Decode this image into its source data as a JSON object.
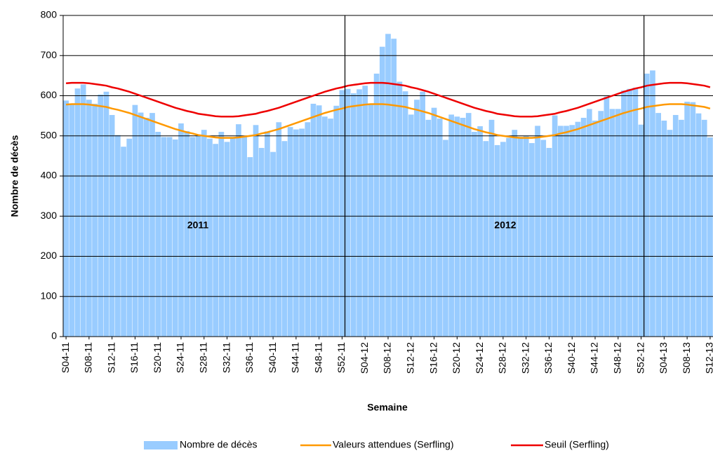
{
  "chart_data": {
    "type": "bar",
    "x_label": "Semaine",
    "y_label": "Nombre de décès",
    "annotations": [
      "2011",
      "2012"
    ],
    "categories": [
      "S04-11",
      null,
      null,
      null,
      "S08-11",
      null,
      null,
      null,
      "S12-11",
      null,
      null,
      null,
      "S16-11",
      null,
      null,
      null,
      "S20-11",
      null,
      null,
      null,
      "S24-11",
      null,
      null,
      null,
      "S28-11",
      null,
      null,
      null,
      "S32-11",
      null,
      null,
      null,
      "S36-11",
      null,
      null,
      null,
      "S40-11",
      null,
      null,
      null,
      "S44-11",
      null,
      null,
      null,
      "S48-11",
      null,
      null,
      null,
      "S52-11",
      null,
      null,
      null,
      "S04-12",
      null,
      null,
      null,
      "S08-12",
      null,
      null,
      null,
      "S12-12",
      null,
      null,
      null,
      "S16-12",
      null,
      null,
      null,
      "S20-12",
      null,
      null,
      null,
      "S24-12",
      null,
      null,
      null,
      "S28-12",
      null,
      null,
      null,
      "S32-12",
      null,
      null,
      null,
      "S36-12",
      null,
      null,
      null,
      "S40-12",
      null,
      null,
      null,
      "S44-12",
      null,
      null,
      null,
      "S48-12",
      null,
      null,
      null,
      "S52-12",
      null,
      null,
      null,
      "S04-13",
      null,
      null,
      null,
      "S08-13",
      null,
      null,
      null,
      "S12-13"
    ],
    "series": [
      {
        "name": "Nombre de décès",
        "type": "bar",
        "color": "#99ccff",
        "values": [
          588,
          580,
          618,
          628,
          590,
          580,
          603,
          610,
          552,
          502,
          473,
          493,
          577,
          558,
          545,
          557,
          510,
          497,
          497,
          491,
          531,
          512,
          497,
          501,
          515,
          493,
          480,
          510,
          485,
          495,
          529,
          498,
          447,
          527,
          470,
          511,
          460,
          534,
          487,
          522,
          516,
          518,
          534,
          580,
          576,
          548,
          543,
          575,
          614,
          617,
          606,
          616,
          625,
          580,
          655,
          722,
          754,
          742,
          635,
          611,
          553,
          590,
          610,
          540,
          570,
          543,
          490,
          553,
          548,
          545,
          557,
          510,
          524,
          487,
          540,
          477,
          485,
          495,
          515,
          497,
          500,
          482,
          525,
          490,
          470,
          551,
          525,
          525,
          527,
          535,
          545,
          567,
          538,
          562,
          598,
          567,
          567,
          613,
          617,
          620,
          528,
          655,
          663,
          557,
          538,
          515,
          552,
          540,
          585,
          584,
          556,
          540,
          496
        ]
      },
      {
        "name": "Valeurs attendues (Serfling)",
        "type": "line",
        "color": "#ff9900",
        "values": [
          578,
          579,
          579,
          579,
          578,
          576,
          574,
          572,
          568,
          565,
          561,
          557,
          552,
          547,
          542,
          537,
          532,
          527,
          522,
          517,
          513,
          509,
          506,
          502,
          500,
          498,
          496,
          495,
          495,
          495,
          496,
          498,
          500,
          502,
          506,
          509,
          513,
          517,
          522,
          527,
          532,
          537,
          542,
          547,
          552,
          557,
          561,
          565,
          568,
          572,
          574,
          576,
          578,
          579,
          579,
          579,
          578,
          576,
          574,
          572,
          568,
          565,
          561,
          557,
          552,
          547,
          542,
          537,
          532,
          527,
          522,
          517,
          513,
          509,
          506,
          502,
          500,
          498,
          496,
          495,
          495,
          495,
          496,
          498,
          500,
          502,
          506,
          509,
          513,
          517,
          522,
          527,
          532,
          537,
          542,
          547,
          552,
          557,
          561,
          565,
          568,
          572,
          574,
          576,
          578,
          579,
          579,
          579,
          578,
          576,
          574,
          572,
          568
        ]
      },
      {
        "name": "Seuil (Serfling)",
        "type": "line",
        "color": "#ee0000",
        "values": [
          631,
          632,
          632,
          632,
          631,
          629,
          627,
          625,
          621,
          618,
          614,
          610,
          605,
          600,
          595,
          590,
          585,
          580,
          575,
          570,
          566,
          562,
          559,
          555,
          553,
          551,
          549,
          548,
          548,
          548,
          549,
          551,
          553,
          555,
          559,
          562,
          566,
          570,
          575,
          580,
          585,
          590,
          595,
          600,
          605,
          610,
          614,
          618,
          621,
          625,
          627,
          629,
          631,
          632,
          632,
          632,
          631,
          629,
          627,
          625,
          621,
          618,
          614,
          610,
          605,
          600,
          595,
          590,
          585,
          580,
          575,
          570,
          566,
          562,
          559,
          555,
          553,
          551,
          549,
          548,
          548,
          548,
          549,
          551,
          553,
          555,
          559,
          562,
          566,
          570,
          575,
          580,
          585,
          590,
          595,
          600,
          605,
          610,
          614,
          618,
          621,
          625,
          627,
          629,
          631,
          632,
          632,
          632,
          631,
          629,
          627,
          625,
          621
        ]
      }
    ],
    "ylim": [
      0,
      800
    ],
    "yticks": [
      0,
      100,
      200,
      300,
      400,
      500,
      600,
      700,
      800
    ],
    "grid": true,
    "legend": "bottom"
  }
}
